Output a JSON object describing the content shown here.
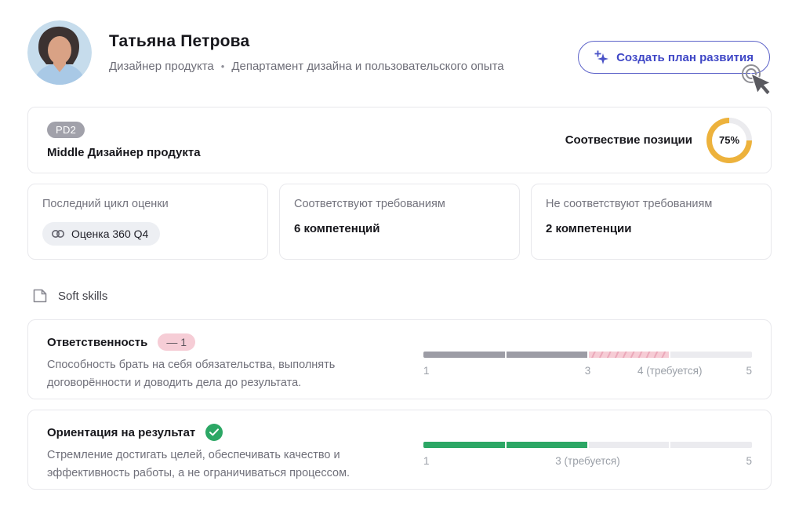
{
  "header": {
    "name": "Татьяна Петрова",
    "role": "Дизайнер продукта",
    "separator": "•",
    "department": "Департамент дизайна и пользовательского опыта",
    "avatar": "photo-of-employee",
    "cta_button": {
      "label": "Создать план развития",
      "icon": "sparkles-icon",
      "accent_color": "#3f47c6"
    }
  },
  "position_card": {
    "grade_badge": "PD2",
    "title": "Middle Дизайнер продукта",
    "match_label": "Соотвествие позиции",
    "match_percent": "75%",
    "donut": {
      "value": 75,
      "color": "#edb23c",
      "track": "#ebebee"
    }
  },
  "summary_cards": [
    {
      "label": "Последний цикл оценки",
      "chip": {
        "icon": "link-icon",
        "text": "Оценка 360 Q4"
      }
    },
    {
      "label": "Соответствуют требованиям",
      "value": "6 компетенций"
    },
    {
      "label": "Не соответствуют требованиям",
      "value": "2 компетенции"
    }
  ],
  "section": {
    "icon": "file-icon",
    "title": "Soft skills"
  },
  "skills": [
    {
      "name": "Ответственность",
      "badge": {
        "type": "delta",
        "text": "— 1",
        "bg": "#f6cdd6"
      },
      "description": "Способность брать на себя обязательства, выполнять договорённости и доводить дела до результата.",
      "scale": {
        "min": 1,
        "max": 5,
        "current": 3,
        "required": 4,
        "fill_color": "#9c9ca5",
        "gap_style": "hatched-pink",
        "labels": [
          {
            "text": "1",
            "pos": 0
          },
          {
            "text": "3",
            "pos": 50
          },
          {
            "text": "4 (требуется)",
            "pos": 75
          },
          {
            "text": "5",
            "pos": 100
          }
        ]
      }
    },
    {
      "name": "Ориентация на результат",
      "badge": {
        "type": "check",
        "icon": "check-icon",
        "bg": "#2ca765"
      },
      "description": "Стремление достигать целей, обеспечивать качество и эффективность работы, а не ограничиваться процессом.",
      "scale": {
        "min": 1,
        "max": 5,
        "current": 3,
        "required": 3,
        "fill_color": "#2ca765",
        "labels": [
          {
            "text": "1",
            "pos": 0
          },
          {
            "text": "3 (требуется)",
            "pos": 50
          },
          {
            "text": "5",
            "pos": 100
          }
        ]
      }
    }
  ]
}
